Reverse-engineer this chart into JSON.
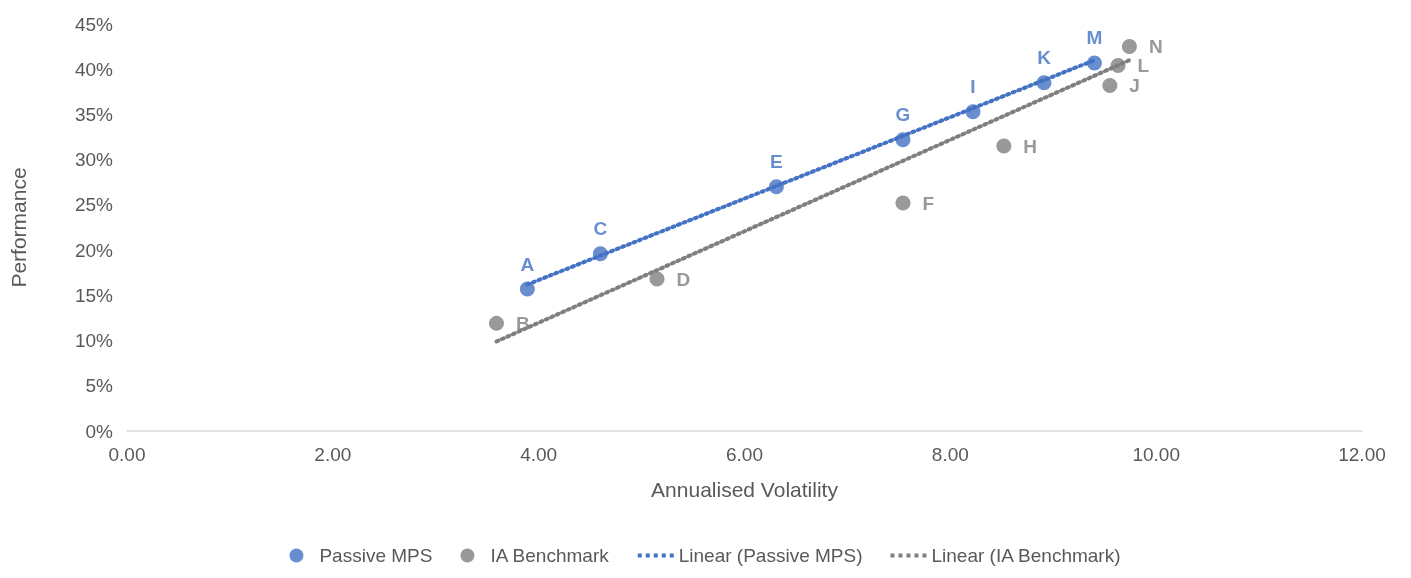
{
  "chart_data": {
    "type": "scatter",
    "xlabel": "Annualised Volatility",
    "ylabel": "Performance",
    "series": [
      {
        "name": "Passive MPS",
        "color": "#4472c4",
        "x": [
          3.89,
          4.6,
          6.31,
          7.54,
          8.22,
          8.91,
          9.4
        ],
        "values": [
          15.7,
          19.6,
          27.0,
          32.2,
          35.3,
          38.5,
          40.7
        ]
      },
      {
        "name": "IA Benchmark",
        "color": "#7f7f7f",
        "x": [
          3.59,
          5.15,
          7.54,
          8.52,
          9.55,
          9.63,
          9.74
        ],
        "values": [
          11.9,
          16.8,
          25.2,
          31.5,
          38.2,
          40.4,
          42.5
        ]
      },
      {
        "name": "Linear (Passive MPS)",
        "type": "line",
        "line_style": "dotted",
        "marker": "none",
        "color": "#4472c4",
        "x": [
          3.89,
          9.4
        ],
        "values": [
          16.2,
          41.0
        ]
      },
      {
        "name": "Linear (IA Benchmark)",
        "type": "line",
        "line_style": "dotted",
        "marker": "none",
        "color": "#7f7f7f",
        "x": [
          3.59,
          9.74
        ],
        "values": [
          9.9,
          41.0
        ]
      }
    ],
    "annotations": [
      {
        "text": "A",
        "x": 3.89,
        "y": 15.7
      },
      {
        "text": "C",
        "x": 4.6,
        "y": 19.6
      },
      {
        "text": "E",
        "x": 6.31,
        "y": 27.0
      },
      {
        "text": "G",
        "x": 7.54,
        "y": 32.2
      },
      {
        "text": "I",
        "x": 8.22,
        "y": 35.3
      },
      {
        "text": "K",
        "x": 8.91,
        "y": 38.5
      },
      {
        "text": "M",
        "x": 9.4,
        "y": 40.7
      },
      {
        "text": "B",
        "x": 3.59,
        "y": 11.9
      },
      {
        "text": "D",
        "x": 5.15,
        "y": 16.8
      },
      {
        "text": "F",
        "x": 7.54,
        "y": 25.2
      },
      {
        "text": "H",
        "x": 8.52,
        "y": 31.5
      },
      {
        "text": "J",
        "x": 9.55,
        "y": 38.2
      },
      {
        "text": "L",
        "x": 9.63,
        "y": 40.4
      },
      {
        "text": "N",
        "x": 9.74,
        "y": 42.5
      }
    ],
    "xlim": [
      0,
      12
    ],
    "xticks": [
      {
        "value": 0,
        "label": "0.00"
      },
      {
        "value": 2,
        "label": "2.00"
      },
      {
        "value": 4,
        "label": "4.00"
      },
      {
        "value": 6,
        "label": "6.00"
      },
      {
        "value": 8,
        "label": "8.00"
      },
      {
        "value": 10,
        "label": "10.00"
      },
      {
        "value": 12,
        "label": "12.00"
      }
    ],
    "ylim": [
      0,
      45
    ],
    "yticks": [
      {
        "value": 0,
        "label": "0%"
      },
      {
        "value": 5,
        "label": "5%"
      },
      {
        "value": 10,
        "label": "10%"
      },
      {
        "value": 15,
        "label": "15%"
      },
      {
        "value": 20,
        "label": "20%"
      },
      {
        "value": 25,
        "label": "25%"
      },
      {
        "value": 30,
        "label": "30%"
      },
      {
        "value": 35,
        "label": "35%"
      },
      {
        "value": 40,
        "label": "40%"
      },
      {
        "value": 45,
        "label": "45%"
      }
    ],
    "grid": false,
    "legend": "bottom",
    "marker": "circle"
  }
}
